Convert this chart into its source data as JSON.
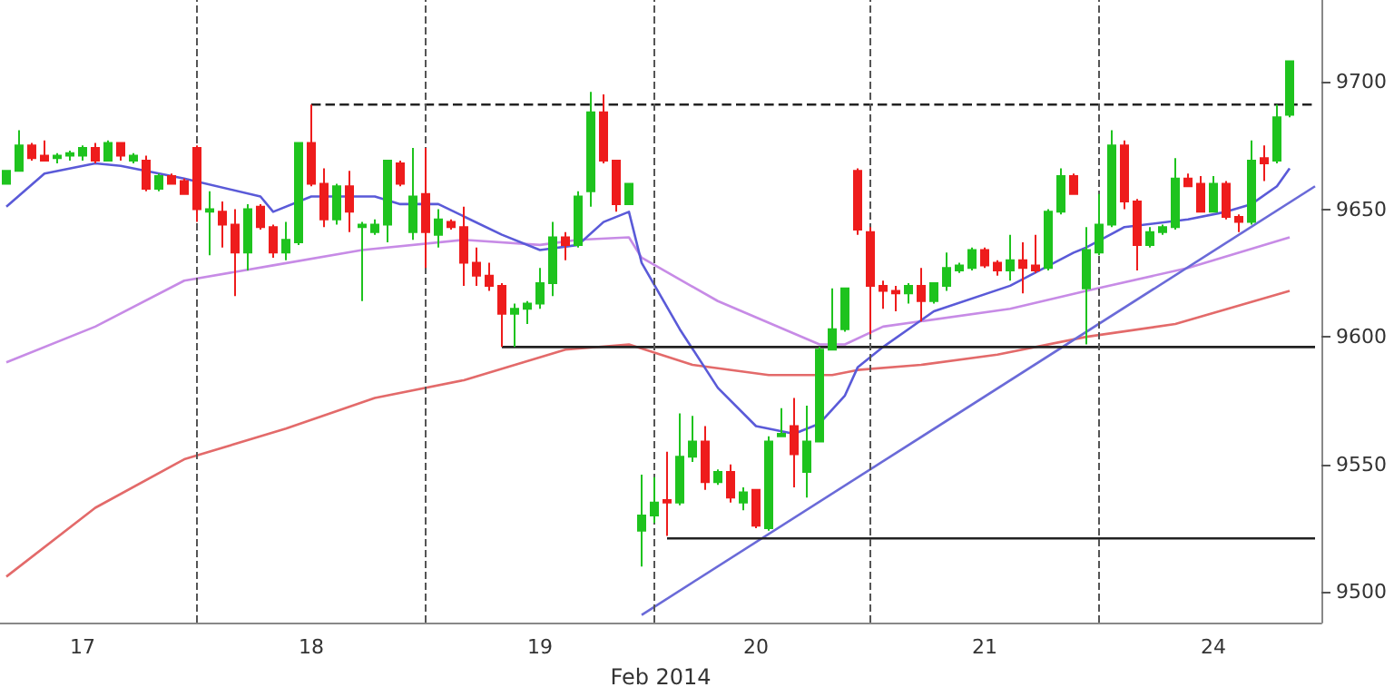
{
  "chart_data": {
    "type": "candlestick",
    "xlabel": "Feb 2014",
    "ylim": [
      9488,
      9732
    ],
    "categories": [
      null,
      null,
      null,
      null,
      null,
      null,
      "17",
      null,
      null,
      null,
      null,
      null,
      null,
      null,
      null,
      null,
      null,
      null,
      null,
      null,
      null,
      null,
      null,
      null,
      "18",
      null,
      null,
      null,
      null,
      null,
      null,
      null,
      null,
      null,
      null,
      null,
      null,
      null,
      null,
      null,
      null,
      null,
      "19",
      null,
      null,
      null,
      null,
      null,
      null,
      null,
      null,
      null,
      null,
      null,
      null,
      null,
      null,
      null,
      null,
      "20",
      null,
      null,
      null,
      null,
      null,
      null,
      null,
      null,
      null,
      null,
      null,
      null,
      null,
      null,
      null,
      null,
      null,
      "21",
      null,
      null,
      null,
      null,
      null,
      null,
      null,
      null,
      null,
      null,
      null,
      null,
      null,
      null,
      null,
      null,
      null,
      "24",
      null,
      null,
      null,
      null,
      null,
      null,
      null,
      null
    ],
    "yticks": [
      9500,
      9550,
      9600,
      9650,
      9700
    ],
    "grid": false,
    "series": [
      {
        "type": "line",
        "color": "#e36a6a",
        "line_style": "solid",
        "values": [
          9506,
          null,
          null,
          null,
          null,
          null,
          null,
          9533,
          null,
          null,
          null,
          null,
          null,
          null,
          9552,
          null,
          null,
          null,
          null,
          null,
          null,
          null,
          9564,
          null,
          null,
          null,
          null,
          null,
          null,
          9576,
          null,
          null,
          null,
          null,
          null,
          null,
          9583,
          null,
          null,
          null,
          null,
          null,
          null,
          null,
          9595,
          null,
          null,
          null,
          null,
          9597,
          null,
          null,
          null,
          null,
          9589,
          null,
          null,
          null,
          null,
          null,
          9585,
          null,
          null,
          null,
          null,
          9585,
          null,
          9587,
          null,
          null,
          null,
          null,
          9589,
          null,
          null,
          null,
          null,
          null,
          9593,
          null,
          null,
          null,
          null,
          null,
          null,
          9600,
          null,
          null,
          null,
          null,
          null,
          null,
          9605,
          null,
          null,
          null,
          null,
          null,
          null,
          null,
          null,
          9618,
          null,
          null
        ]
      },
      {
        "type": "line",
        "color": "#c78be6",
        "line_style": "solid",
        "values": [
          9590,
          null,
          null,
          null,
          null,
          null,
          null,
          9604,
          null,
          null,
          null,
          null,
          null,
          null,
          9622,
          null,
          null,
          null,
          null,
          null,
          null,
          9628,
          null,
          null,
          null,
          null,
          null,
          null,
          9634,
          null,
          null,
          null,
          null,
          null,
          null,
          null,
          9638,
          null,
          null,
          null,
          null,
          null,
          9636,
          null,
          null,
          9638,
          null,
          null,
          null,
          9639,
          9631,
          null,
          null,
          null,
          null,
          null,
          9614,
          null,
          null,
          null,
          null,
          null,
          null,
          null,
          9597,
          null,
          9597,
          null,
          null,
          9604,
          null,
          null,
          null,
          null,
          null,
          null,
          null,
          null,
          null,
          9611,
          null,
          null,
          null,
          null,
          null,
          9618,
          null,
          null,
          null,
          null,
          null,
          null,
          null,
          9627,
          null,
          null,
          null,
          null,
          null,
          null,
          null,
          9639,
          null,
          null
        ]
      },
      {
        "type": "line",
        "color": "#5a5ad8",
        "line_style": "solid",
        "values": [
          9651,
          null,
          null,
          9664,
          null,
          null,
          null,
          9668,
          null,
          9667,
          null,
          null,
          null,
          null,
          9662,
          null,
          null,
          null,
          null,
          null,
          9655,
          9649,
          null,
          null,
          9655,
          null,
          null,
          null,
          null,
          9655,
          null,
          9652,
          null,
          null,
          9652,
          null,
          null,
          null,
          null,
          9640,
          null,
          null,
          9634,
          null,
          null,
          9636,
          null,
          9645,
          null,
          9649,
          9629,
          null,
          null,
          9603,
          null,
          null,
          9580,
          null,
          null,
          9565,
          null,
          null,
          9562,
          null,
          9566,
          null,
          9577,
          9588,
          null,
          9596,
          null,
          null,
          null,
          9610,
          null,
          null,
          null,
          null,
          null,
          9620,
          null,
          null,
          null,
          null,
          9633,
          9635,
          null,
          null,
          9643,
          null,
          null,
          null,
          null,
          9646,
          null,
          null,
          9649,
          null,
          9652,
          null,
          9659,
          9666,
          null,
          null
        ]
      },
      {
        "type": "line",
        "color": "#6a6ad8",
        "line_style": "solid",
        "values": [
          null,
          null,
          null,
          null,
          null,
          null,
          null,
          null,
          null,
          null,
          null,
          null,
          null,
          null,
          null,
          null,
          null,
          null,
          null,
          null,
          null,
          null,
          null,
          null,
          null,
          null,
          null,
          null,
          null,
          null,
          null,
          null,
          null,
          null,
          null,
          null,
          null,
          null,
          null,
          null,
          null,
          null,
          null,
          null,
          null,
          null,
          null,
          null,
          null,
          null,
          9491,
          null,
          null,
          null,
          null,
          null,
          null,
          null,
          null,
          null,
          null,
          null,
          null,
          null,
          null,
          null,
          null,
          null,
          null,
          null,
          null,
          null,
          null,
          null,
          null,
          null,
          null,
          null,
          null,
          null,
          null,
          null,
          null,
          null,
          null,
          null,
          null,
          null,
          null,
          null,
          null,
          null,
          null,
          null,
          null,
          null,
          null,
          null,
          null,
          null,
          null,
          null,
          null,
          9659
        ]
      },
      {
        "type": "line",
        "color": "#222222",
        "line_style": "dashed",
        "values": [
          null,
          null,
          null,
          null,
          null,
          null,
          null,
          null,
          null,
          null,
          null,
          null,
          null,
          null,
          null,
          null,
          null,
          null,
          null,
          null,
          null,
          null,
          null,
          null,
          9691,
          null,
          null,
          null,
          null,
          null,
          null,
          null,
          null,
          null,
          null,
          null,
          null,
          null,
          null,
          null,
          null,
          null,
          null,
          null,
          null,
          null,
          null,
          null,
          null,
          null,
          null,
          null,
          null,
          null,
          null,
          null,
          null,
          null,
          null,
          null,
          null,
          null,
          null,
          null,
          null,
          null,
          null,
          null,
          null,
          null,
          null,
          null,
          null,
          null,
          null,
          null,
          null,
          null,
          null,
          null,
          null,
          null,
          null,
          null,
          null,
          null,
          null,
          null,
          null,
          null,
          null,
          null,
          null,
          null,
          null,
          null,
          null,
          null,
          null,
          null,
          null,
          null,
          null,
          9691
        ]
      },
      {
        "type": "line",
        "color": "#222222",
        "line_style": "solid",
        "values": [
          null,
          null,
          null,
          null,
          null,
          null,
          null,
          null,
          null,
          null,
          null,
          null,
          null,
          null,
          null,
          null,
          null,
          null,
          null,
          null,
          null,
          null,
          null,
          null,
          null,
          null,
          null,
          null,
          null,
          null,
          null,
          null,
          null,
          null,
          null,
          null,
          null,
          null,
          null,
          9596,
          null,
          null,
          null,
          null,
          null,
          null,
          null,
          null,
          null,
          null,
          null,
          null,
          null,
          null,
          null,
          null,
          null,
          null,
          null,
          null,
          null,
          null,
          null,
          null,
          null,
          null,
          null,
          null,
          null,
          null,
          null,
          null,
          null,
          null,
          null,
          null,
          null,
          null,
          null,
          null,
          null,
          null,
          null,
          null,
          null,
          null,
          null,
          null,
          null,
          null,
          null,
          null,
          null,
          null,
          null,
          null,
          null,
          null,
          null,
          null,
          null,
          null,
          null,
          9596
        ]
      },
      {
        "type": "line",
        "color": "#222222",
        "line_style": "solid",
        "values": [
          null,
          null,
          null,
          null,
          null,
          null,
          null,
          null,
          null,
          null,
          null,
          null,
          null,
          null,
          null,
          null,
          null,
          null,
          null,
          null,
          null,
          null,
          null,
          null,
          null,
          null,
          null,
          null,
          null,
          null,
          null,
          null,
          null,
          null,
          null,
          null,
          null,
          null,
          null,
          null,
          null,
          null,
          null,
          null,
          null,
          null,
          null,
          null,
          null,
          null,
          null,
          null,
          9521,
          null,
          null,
          null,
          null,
          null,
          null,
          null,
          null,
          null,
          null,
          null,
          null,
          null,
          null,
          null,
          null,
          null,
          null,
          null,
          null,
          null,
          null,
          null,
          null,
          null,
          null,
          null,
          null,
          null,
          null,
          null,
          null,
          null,
          null,
          null,
          null,
          null,
          null,
          null,
          null,
          null,
          null,
          null,
          null,
          null,
          null,
          null,
          null,
          null,
          null,
          9521
        ]
      },
      {
        "ohlc": [
          [
            9660,
            9665,
            9660,
            9665
          ],
          [
            9665,
            9681,
            9665,
            9675
          ],
          [
            9675,
            9676,
            9669,
            9670
          ],
          [
            9671,
            9677,
            9669,
            9669
          ],
          [
            9670,
            9672,
            9668,
            9671
          ],
          [
            9671,
            9673,
            9669,
            9672
          ],
          [
            9671,
            9675,
            9669,
            9674
          ],
          [
            9674,
            9676,
            9668,
            9669
          ],
          [
            9669,
            9677,
            9669,
            9676
          ],
          [
            9676,
            9676,
            9669,
            9671
          ],
          [
            9669,
            9672,
            9668,
            9671
          ],
          [
            9669,
            9671,
            9657,
            9658
          ],
          [
            9658,
            9664,
            9657,
            9663
          ],
          [
            9663,
            9664,
            9660,
            9660
          ],
          [
            9661,
            9662,
            9656,
            9656
          ],
          [
            9674,
            9675,
            9645,
            9650
          ],
          [
            9649,
            9657,
            9632,
            9650
          ],
          [
            9649,
            9653,
            9635,
            9644
          ],
          [
            9644,
            9650,
            9616,
            9633
          ],
          [
            9633,
            9652,
            9626,
            9650
          ],
          [
            9651,
            9652,
            9642,
            9643
          ],
          [
            9643,
            9644,
            9631,
            9633
          ],
          [
            9633,
            9645,
            9630,
            9638
          ],
          [
            9637,
            9676,
            9636,
            9676
          ],
          [
            9676,
            9691,
            9659,
            9660
          ],
          [
            9660,
            9666,
            9643,
            9646
          ],
          [
            9646,
            9660,
            9644,
            9659
          ],
          [
            9659,
            9665,
            9641,
            9649
          ],
          [
            9643,
            9645,
            9614,
            9644
          ],
          [
            9641,
            9646,
            9640,
            9644
          ],
          [
            9644,
            9669,
            9637,
            9669
          ],
          [
            9668,
            9669,
            9659,
            9660
          ],
          [
            9641,
            9674,
            9638,
            9655
          ],
          [
            9656,
            9674,
            9627,
            9641
          ],
          [
            9640,
            9650,
            9635,
            9646
          ],
          [
            9645,
            9646,
            9642,
            9643
          ],
          [
            9643,
            9651,
            9620,
            9629
          ],
          [
            9629,
            9635,
            9620,
            9624
          ],
          [
            9624,
            9629,
            9618,
            9620
          ],
          [
            9620,
            9621,
            9596,
            9609
          ],
          [
            9609,
            9613,
            9596,
            9611
          ],
          [
            9611,
            9614,
            9605,
            9613
          ],
          [
            9613,
            9627,
            9611,
            9621
          ],
          [
            9621,
            9645,
            9616,
            9639
          ],
          [
            9639,
            9641,
            9630,
            9636
          ],
          [
            9636,
            9657,
            9635,
            9655
          ],
          [
            9657,
            9696,
            9651,
            9688
          ],
          [
            9688,
            9695,
            9668,
            9669
          ],
          [
            9669,
            9669,
            9649,
            9652
          ],
          [
            9652,
            9660,
            9652,
            9660
          ],
          [
            9524,
            9546,
            9510,
            9530
          ],
          [
            9530,
            9545,
            9527,
            9535
          ],
          [
            9536,
            9555,
            9522,
            9535
          ],
          [
            9535,
            9570,
            9534,
            9553
          ],
          [
            9553,
            9569,
            9551,
            9559
          ],
          [
            9559,
            9565,
            9540,
            9543
          ],
          [
            9543,
            9548,
            9542,
            9547
          ],
          [
            9547,
            9550,
            9535,
            9537
          ],
          [
            9535,
            9541,
            9532,
            9539
          ],
          [
            9540,
            9540,
            9525,
            9526
          ],
          [
            9525,
            9561,
            9524,
            9559
          ],
          [
            9561,
            9572,
            9561,
            9562
          ],
          [
            9565,
            9576,
            9541,
            9554
          ],
          [
            9547,
            9573,
            9537,
            9559
          ],
          [
            9559,
            9596,
            9559,
            9595
          ],
          [
            9595,
            9619,
            9595,
            9603
          ],
          [
            9603,
            9619,
            9602,
            9619
          ],
          [
            9665,
            9666,
            9640,
            9642
          ],
          [
            9641,
            9643,
            9601,
            9620
          ],
          [
            9620,
            9622,
            9611,
            9618
          ],
          [
            9618,
            9620,
            9610,
            9617
          ],
          [
            9617,
            9621,
            9613,
            9620
          ],
          [
            9620,
            9627,
            9606,
            9614
          ],
          [
            9614,
            9621,
            9613,
            9621
          ],
          [
            9620,
            9633,
            9618,
            9627
          ],
          [
            9626,
            9629,
            9625,
            9628
          ],
          [
            9627,
            9635,
            9626,
            9634
          ],
          [
            9634,
            9635,
            9627,
            9628
          ],
          [
            9629,
            9630,
            9624,
            9626
          ],
          [
            9626,
            9640,
            9622,
            9630
          ],
          [
            9630,
            9637,
            9617,
            9627
          ],
          [
            9628,
            9640,
            9625,
            9626
          ],
          [
            9627,
            9650,
            9626,
            9649
          ],
          [
            9649,
            9666,
            9648,
            9663
          ],
          [
            9663,
            9664,
            9656,
            9656
          ],
          [
            9619,
            9643,
            9597,
            9634
          ],
          [
            9633,
            9656,
            9632,
            9644
          ],
          [
            9644,
            9681,
            9643,
            9675
          ],
          [
            9675,
            9677,
            9650,
            9653
          ],
          [
            9653,
            9654,
            9626,
            9636
          ],
          [
            9636,
            9643,
            9635,
            9641
          ],
          [
            9641,
            9644,
            9640,
            9643
          ],
          [
            9643,
            9670,
            9642,
            9662
          ],
          [
            9662,
            9664,
            9659,
            9659
          ],
          [
            9660,
            9663,
            9649,
            9649
          ],
          [
            9649,
            9663,
            9649,
            9660
          ],
          [
            9660,
            9661,
            9646,
            9647
          ],
          [
            9647,
            9648,
            9641,
            9645
          ],
          [
            9645,
            9677,
            9644,
            9669
          ],
          [
            9670,
            9675,
            9661,
            9668
          ],
          [
            9669,
            9691,
            9668,
            9686
          ],
          [
            9687,
            9708,
            9686,
            9708
          ],
          null,
          null
        ],
        "colors": [
          "#1ec31e",
          "#1ec31e",
          "#ee1c1c",
          "#ee1c1c",
          "#1ec31e",
          "#1ec31e",
          "#1ec31e",
          "#ee1c1c",
          "#1ec31e",
          "#ee1c1c",
          "#1ec31e",
          "#ee1c1c",
          "#1ec31e",
          "#ee1c1c",
          "#ee1c1c",
          "#ee1c1c",
          "#1ec31e",
          "#ee1c1c",
          "#ee1c1c",
          "#1ec31e",
          "#ee1c1c",
          "#ee1c1c",
          "#1ec31e",
          "#1ec31e",
          "#ee1c1c",
          "#ee1c1c",
          "#1ec31e",
          "#ee1c1c",
          "#1ec31e",
          "#1ec31e",
          "#1ec31e",
          "#ee1c1c",
          "#1ec31e",
          "#ee1c1c",
          "#1ec31e",
          "#ee1c1c",
          "#ee1c1c",
          "#ee1c1c",
          "#ee1c1c",
          "#ee1c1c",
          "#1ec31e",
          "#1ec31e",
          "#1ec31e",
          "#1ec31e",
          "#ee1c1c",
          "#1ec31e",
          "#1ec31e",
          "#ee1c1c",
          "#ee1c1c",
          "#1ec31e",
          "#1ec31e",
          "#1ec31e",
          "#ee1c1c",
          "#1ec31e",
          "#1ec31e",
          "#ee1c1c",
          "#1ec31e",
          "#ee1c1c",
          "#1ec31e",
          "#ee1c1c",
          "#1ec31e",
          "#1ec31e",
          "#ee1c1c",
          "#1ec31e",
          "#1ec31e",
          "#1ec31e",
          "#1ec31e",
          "#ee1c1c",
          "#ee1c1c",
          "#ee1c1c",
          "#ee1c1c",
          "#1ec31e",
          "#ee1c1c",
          "#1ec31e",
          "#1ec31e",
          "#1ec31e",
          "#1ec31e",
          "#ee1c1c",
          "#ee1c1c",
          "#1ec31e",
          "#ee1c1c",
          "#ee1c1c",
          "#1ec31e",
          "#1ec31e",
          "#ee1c1c",
          "#1ec31e",
          "#1ec31e",
          "#1ec31e",
          "#ee1c1c",
          "#ee1c1c",
          "#1ec31e",
          "#1ec31e",
          "#1ec31e",
          "#ee1c1c",
          "#ee1c1c",
          "#1ec31e",
          "#ee1c1c",
          "#ee1c1c",
          "#1ec31e",
          "#ee1c1c",
          "#1ec31e",
          "#1ec31e",
          null,
          null
        ]
      }
    ]
  }
}
